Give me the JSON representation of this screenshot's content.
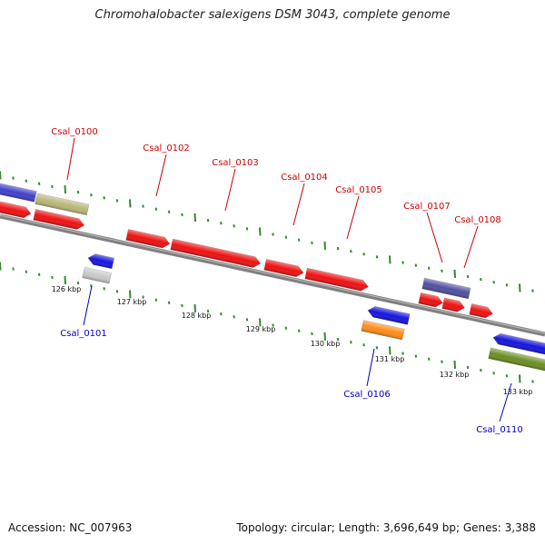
{
  "title": "Chromohalobacter salexigens DSM 3043, complete genome",
  "footer": {
    "accession": "Accession: NC_007963",
    "summary": "Topology: circular; Length: 3,696,649 bp; Genes: 3,388"
  },
  "colors": {
    "forward_label": "#cc0000",
    "reverse_label": "#0000bb",
    "backbone": "#808080",
    "tick": "#2e8b2e"
  },
  "tick_labels": [
    "126 kbp",
    "127 kbp",
    "128 kbp",
    "129 kbp",
    "130 kbp",
    "131 kbp",
    "132 kbp",
    "133 kbp"
  ],
  "gene_labels": [
    {
      "text": "Csal_0100",
      "strand": "forward"
    },
    {
      "text": "Csal_0101",
      "strand": "reverse"
    },
    {
      "text": "Csal_0102",
      "strand": "forward"
    },
    {
      "text": "Csal_0103",
      "strand": "forward"
    },
    {
      "text": "Csal_0104",
      "strand": "forward"
    },
    {
      "text": "Csal_0105",
      "strand": "forward"
    },
    {
      "text": "Csal_0106",
      "strand": "reverse"
    },
    {
      "text": "Csal_0107",
      "strand": "forward"
    },
    {
      "text": "Csal_0108",
      "strand": "forward"
    },
    {
      "text": "Csal_0110",
      "strand": "reverse"
    }
  ],
  "features": [
    {
      "color": "#4040cc",
      "strand": "forward",
      "track": "outer"
    },
    {
      "color": "#b8b878",
      "strand": "forward",
      "track": "outer"
    },
    {
      "color": "#ee1111",
      "strand": "forward",
      "track": "inner"
    },
    {
      "color": "#ee1111",
      "strand": "forward",
      "track": "inner"
    },
    {
      "color": "#1515dd",
      "strand": "reverse",
      "track": "inner"
    },
    {
      "color": "#c8c8c8",
      "strand": "reverse",
      "track": "outer"
    },
    {
      "color": "#ee1111",
      "strand": "forward",
      "track": "inner"
    },
    {
      "color": "#ee1111",
      "strand": "forward",
      "track": "inner"
    },
    {
      "color": "#ee1111",
      "strand": "forward",
      "track": "inner"
    },
    {
      "color": "#ee1111",
      "strand": "forward",
      "track": "inner"
    },
    {
      "color": "#1515dd",
      "strand": "reverse",
      "track": "inner"
    },
    {
      "color": "#ff8c1a",
      "strand": "reverse",
      "track": "outer"
    },
    {
      "color": "#5050a0",
      "strand": "forward",
      "track": "outer"
    },
    {
      "color": "#ee1111",
      "strand": "forward",
      "track": "inner"
    },
    {
      "color": "#ee1111",
      "strand": "forward",
      "track": "inner"
    },
    {
      "color": "#ee1111",
      "strand": "forward",
      "track": "inner"
    },
    {
      "color": "#1515dd",
      "strand": "reverse",
      "track": "inner"
    },
    {
      "color": "#6b8e23",
      "strand": "reverse",
      "track": "outer"
    }
  ]
}
